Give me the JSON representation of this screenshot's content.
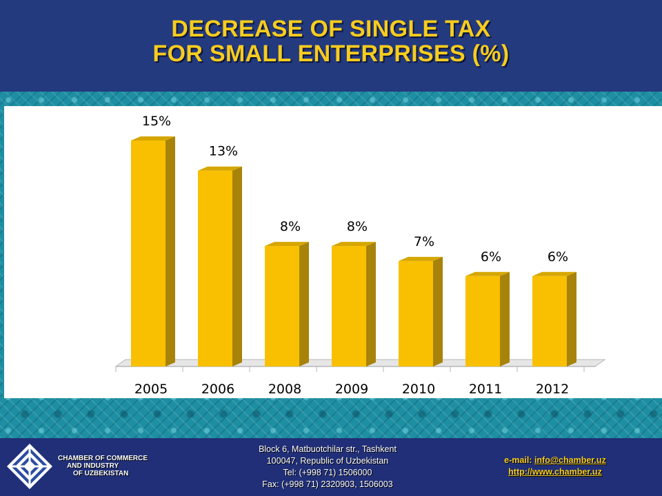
{
  "header": {
    "title_line1": "DECREASE OF SINGLE TAX",
    "title_line2": "FOR SMALL ENTERPRISES (%)"
  },
  "chart_data": {
    "type": "bar",
    "title": "",
    "xlabel": "",
    "ylabel": "",
    "categories": [
      "2005",
      "2006",
      "2008",
      "2009",
      "2010",
      "2011",
      "2012"
    ],
    "values": [
      15,
      13,
      8,
      8,
      7,
      6,
      6
    ],
    "data_labels": [
      "15%",
      "13%",
      "8%",
      "8%",
      "7%",
      "6%",
      "6%"
    ],
    "ylim": [
      0,
      15
    ],
    "grid": false,
    "legend": "none",
    "bar_color": "#f8c000",
    "bar_side_color": "#a8830a",
    "bar_top_color": "#d6a600"
  },
  "footer": {
    "org_line1": "CHAMBER OF COMMERCE",
    "org_line2": "AND INDUSTRY",
    "org_line3": "OF UZBEKISTAN",
    "address_line1": "Block 6, Matbuotchilar str., Tashkent",
    "address_line2": "100047, Republic of Uzbekistan",
    "address_line3": "Tel: (+998 71) 1506000",
    "address_line4": "Fax: (+998 71) 2320903,  1506003",
    "email_label": "e-mail:",
    "email": "info@chamber.uz",
    "website": "http://www.chamber.uz"
  }
}
